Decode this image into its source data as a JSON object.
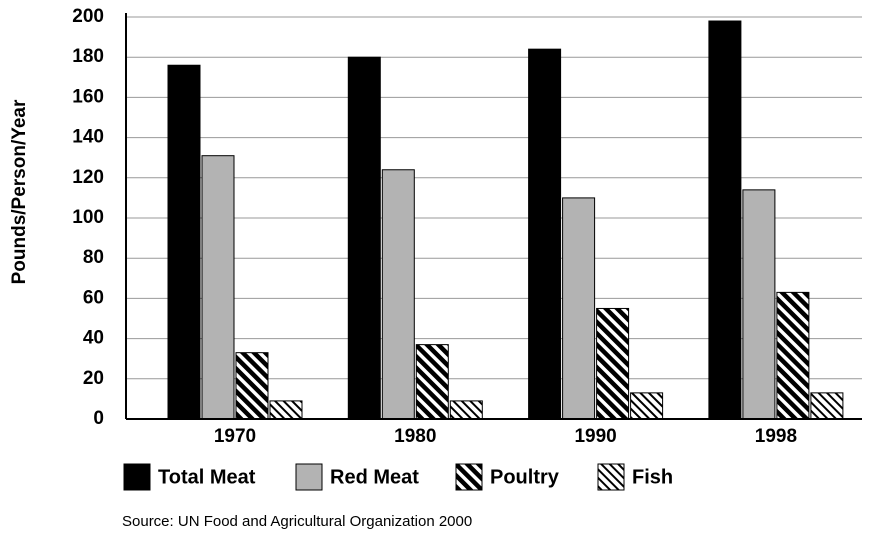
{
  "chart_data": {
    "type": "bar",
    "y_label": "Pounds/Person/Year",
    "source": "Source: UN Food and Agricultural Organization 2000",
    "categories": [
      "1970",
      "1980",
      "1990",
      "1998"
    ],
    "series": [
      {
        "name": "Total Meat",
        "color": "#000000",
        "values": [
          176,
          180,
          184,
          198
        ]
      },
      {
        "name": "Red Meat",
        "color": "#b3b3b3",
        "values": [
          131,
          124,
          110,
          114
        ]
      },
      {
        "name": "Poultry",
        "color": "#000000",
        "hatch": "dense",
        "values": [
          33,
          37,
          55,
          63
        ]
      },
      {
        "name": "Fish",
        "color": "#000000",
        "hatch": "light",
        "values": [
          9,
          9,
          13,
          13
        ]
      }
    ],
    "ylim": [
      0,
      200
    ],
    "yticks": [
      0,
      20,
      40,
      60,
      80,
      100,
      120,
      140,
      160,
      180,
      200
    ],
    "grid": true,
    "legend": "bottom"
  }
}
